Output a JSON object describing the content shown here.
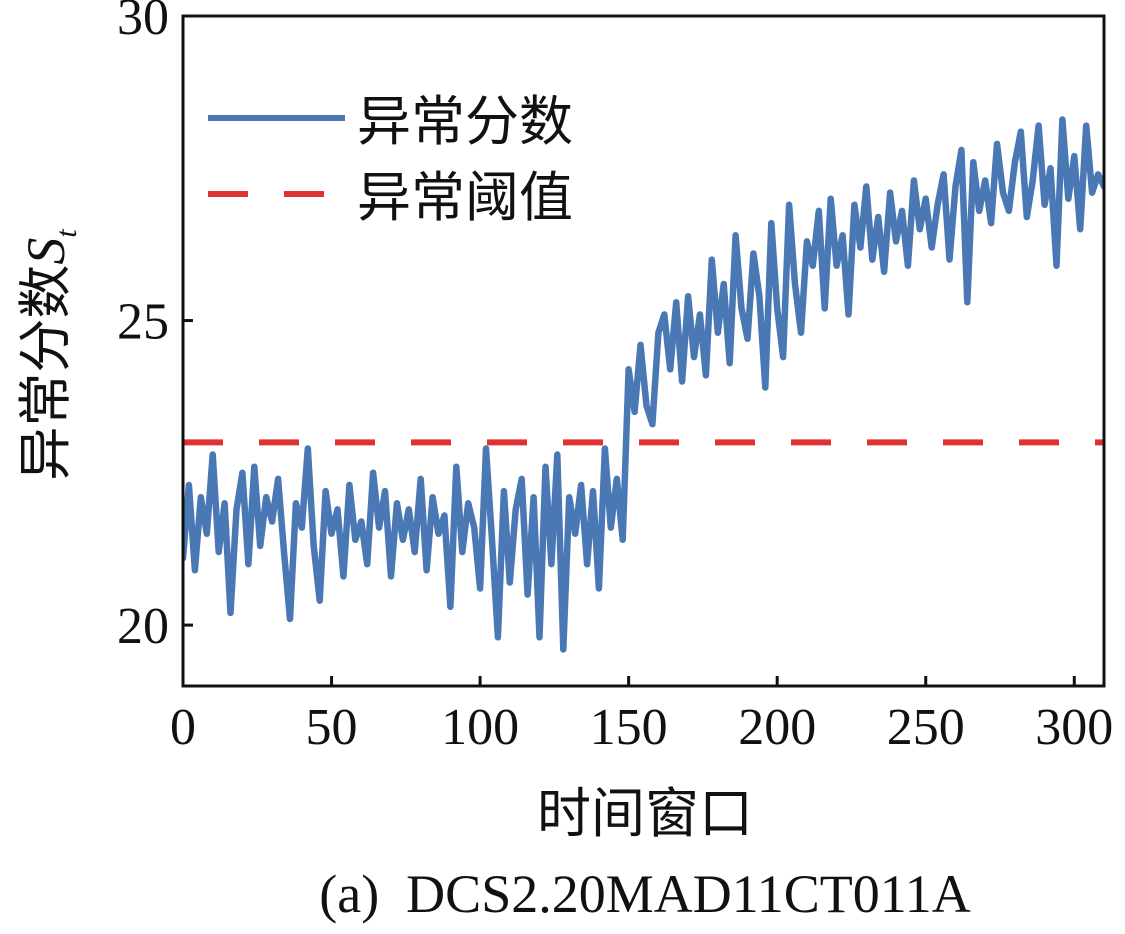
{
  "chart_data": {
    "type": "line",
    "caption": "(a)  DCS2.20MAD11CT011A",
    "xlabel": "时间窗口",
    "ylabel_main": "异常分数",
    "ylabel_symbol": "S",
    "ylabel_subscript": "t",
    "xlim": [
      0,
      310
    ],
    "ylim": [
      19,
      30
    ],
    "xticks": [
      0,
      50,
      100,
      150,
      200,
      250,
      300
    ],
    "yticks": [
      20,
      25,
      30
    ],
    "grid": false,
    "legend_position": "top-left",
    "colors": {
      "score": "#4a78b5",
      "threshold": "#e03232",
      "axis": "#111111"
    },
    "series": [
      {
        "name": "异常分数",
        "style": "solid",
        "x": [
          0,
          2,
          4,
          6,
          8,
          10,
          12,
          14,
          16,
          18,
          20,
          22,
          24,
          26,
          28,
          30,
          32,
          34,
          36,
          38,
          40,
          42,
          44,
          46,
          48,
          50,
          52,
          54,
          56,
          58,
          60,
          62,
          64,
          66,
          68,
          70,
          72,
          74,
          76,
          78,
          80,
          82,
          84,
          86,
          88,
          90,
          92,
          94,
          96,
          98,
          100,
          102,
          104,
          106,
          108,
          110,
          112,
          114,
          116,
          118,
          120,
          122,
          124,
          126,
          128,
          130,
          132,
          134,
          136,
          138,
          140,
          142,
          144,
          146,
          148,
          150,
          152,
          154,
          156,
          158,
          160,
          162,
          164,
          166,
          168,
          170,
          172,
          174,
          176,
          178,
          180,
          182,
          184,
          186,
          188,
          190,
          192,
          194,
          196,
          198,
          200,
          202,
          204,
          206,
          208,
          210,
          212,
          214,
          216,
          218,
          220,
          222,
          224,
          226,
          228,
          230,
          232,
          234,
          236,
          238,
          240,
          242,
          244,
          246,
          248,
          250,
          252,
          254,
          256,
          258,
          260,
          262,
          264,
          266,
          268,
          270,
          272,
          274,
          276,
          278,
          280,
          282,
          284,
          286,
          288,
          290,
          292,
          294,
          296,
          298,
          300,
          302,
          304,
          306,
          308,
          310
        ],
        "values": [
          21.1,
          22.3,
          20.9,
          22.1,
          21.5,
          22.8,
          21.2,
          22.0,
          20.2,
          21.9,
          22.5,
          21.0,
          22.6,
          21.3,
          22.1,
          21.7,
          22.4,
          21.2,
          20.1,
          22.0,
          21.6,
          22.9,
          21.3,
          20.4,
          22.2,
          21.5,
          21.9,
          20.8,
          22.3,
          21.4,
          21.7,
          21.0,
          22.5,
          21.6,
          22.2,
          20.8,
          22.0,
          21.4,
          21.9,
          21.2,
          22.4,
          20.9,
          22.1,
          21.5,
          21.8,
          20.3,
          22.6,
          21.2,
          22.0,
          21.6,
          20.6,
          22.9,
          21.4,
          19.8,
          22.2,
          20.7,
          21.9,
          22.4,
          20.5,
          22.1,
          19.8,
          22.6,
          21.0,
          22.8,
          19.6,
          22.1,
          21.5,
          22.3,
          21.0,
          22.2,
          20.6,
          22.9,
          21.6,
          22.4,
          21.4,
          24.2,
          23.5,
          24.6,
          23.6,
          23.3,
          24.8,
          25.1,
          24.2,
          25.3,
          24.0,
          25.4,
          24.4,
          25.1,
          24.1,
          26.0,
          24.8,
          25.6,
          24.3,
          26.4,
          25.2,
          24.7,
          26.1,
          25.4,
          23.9,
          26.6,
          25.2,
          24.4,
          26.9,
          25.6,
          24.8,
          26.3,
          25.9,
          26.8,
          25.2,
          27.0,
          25.9,
          26.4,
          25.1,
          26.9,
          26.2,
          27.2,
          26.0,
          26.7,
          25.8,
          27.1,
          26.3,
          26.8,
          25.9,
          27.3,
          26.5,
          27.0,
          26.2,
          26.9,
          27.4,
          26.0,
          27.2,
          27.8,
          25.3,
          27.6,
          26.8,
          27.3,
          26.6,
          27.9,
          27.1,
          26.8,
          27.6,
          28.1,
          26.7,
          27.3,
          28.2,
          26.9,
          27.5,
          25.9,
          28.3,
          27.0,
          27.7,
          26.5,
          28.2,
          27.1,
          27.4,
          27.2
        ]
      },
      {
        "name": "异常阈值",
        "style": "dashed",
        "x": [
          0,
          310
        ],
        "values": [
          23.0,
          23.0
        ]
      }
    ]
  }
}
